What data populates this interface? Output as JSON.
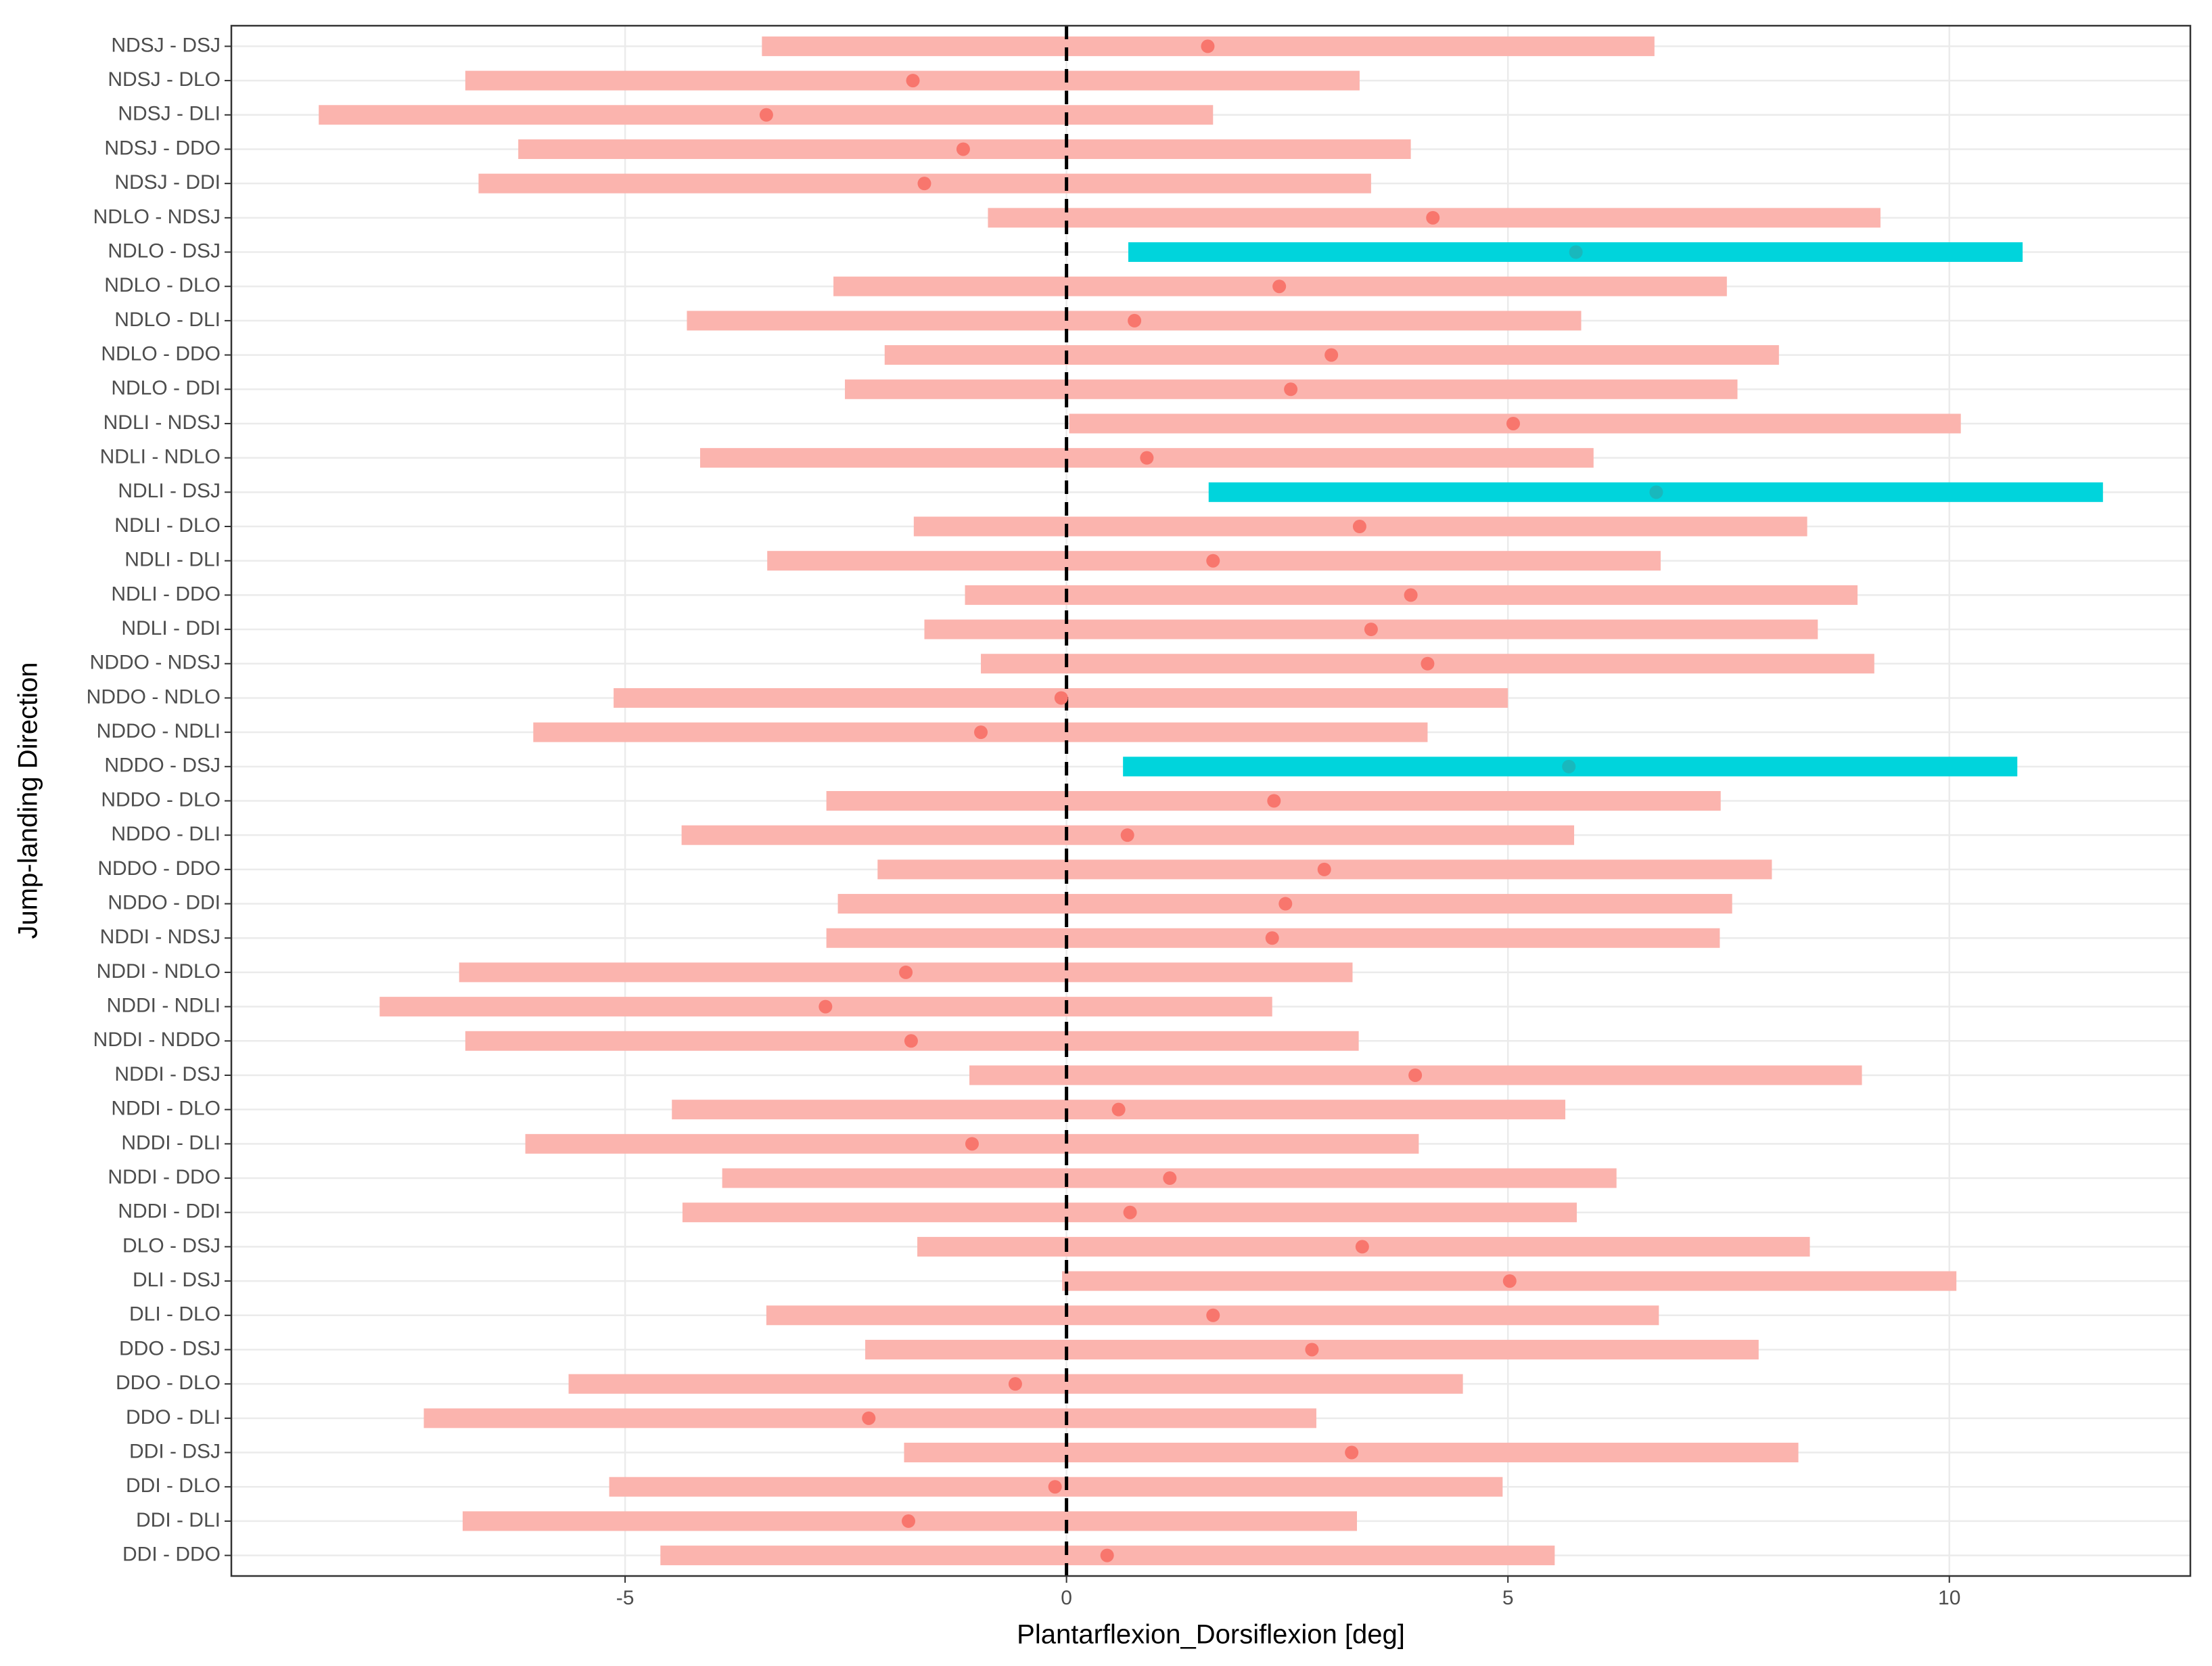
{
  "chart_data": {
    "type": "interval",
    "x_label": "Plantarflexion_Dorsiflexion [deg]",
    "y_label": "Jump-landing Direction",
    "categories": [
      "NDSJ - DSJ",
      "NDSJ - DLO",
      "NDSJ - DLI",
      "NDSJ - DDO",
      "NDSJ - DDI",
      "NDLO - NDSJ",
      "NDLO - DSJ",
      "NDLO - DLO",
      "NDLO - DLI",
      "NDLO - DDO",
      "NDLO - DDI",
      "NDLI - NDSJ",
      "NDLI - NDLO",
      "NDLI - DSJ",
      "NDLI - DLO",
      "NDLI - DLI",
      "NDLI - DDO",
      "NDLI - DDI",
      "NDDO - NDSJ",
      "NDDO - NDLO",
      "NDDO - NDLI",
      "NDDO - DSJ",
      "NDDO - DLO",
      "NDDO - DLI",
      "NDDO - DDO",
      "NDDO - DDI",
      "NDDI - NDSJ",
      "NDDI - NDLO",
      "NDDI - NDLI",
      "NDDI - NDDO",
      "NDDI - DSJ",
      "NDDI - DLO",
      "NDDI - DLI",
      "NDDI - DDO",
      "NDDI - DDI",
      "DLO - DSJ",
      "DLI - DSJ",
      "DLI - DLO",
      "DDO - DSJ",
      "DDO - DLO",
      "DDO - DLI",
      "DDI - DSJ",
      "DDI - DLO",
      "DDI - DLI",
      "DDI - DDO"
    ],
    "estimate": [
      1.6,
      -1.74,
      -3.4,
      -1.17,
      -1.61,
      4.15,
      5.77,
      2.41,
      0.77,
      3.0,
      2.54,
      5.06,
      0.91,
      6.68,
      3.32,
      1.66,
      3.9,
      3.45,
      4.09,
      -0.06,
      -0.97,
      5.69,
      2.35,
      0.69,
      2.92,
      2.48,
      2.33,
      -1.82,
      -2.73,
      -1.76,
      3.95,
      0.59,
      -1.07,
      1.17,
      0.72,
      3.35,
      5.02,
      1.66,
      2.78,
      -0.58,
      -2.24,
      3.23,
      -0.13,
      -1.79,
      0.46
    ],
    "lower": [
      -3.45,
      -6.81,
      -8.47,
      -6.21,
      -6.66,
      -0.89,
      0.7,
      -2.64,
      -4.3,
      -2.06,
      -2.51,
      0.03,
      -4.15,
      1.61,
      -1.73,
      -3.39,
      -1.15,
      -1.61,
      -0.97,
      -5.13,
      -6.04,
      0.64,
      -2.72,
      -4.36,
      -2.14,
      -2.59,
      -2.72,
      -6.88,
      -7.78,
      -6.81,
      -1.1,
      -4.47,
      -6.13,
      -3.9,
      -4.35,
      -1.69,
      -0.05,
      -3.4,
      -2.28,
      -5.64,
      -7.28,
      -1.84,
      -5.18,
      -6.84,
      -4.6
    ],
    "upper": [
      6.66,
      3.32,
      1.66,
      3.9,
      3.45,
      9.22,
      10.83,
      7.48,
      5.83,
      8.07,
      7.6,
      10.13,
      5.97,
      11.74,
      8.39,
      6.73,
      8.96,
      8.51,
      9.15,
      5.0,
      4.09,
      10.77,
      7.41,
      5.75,
      7.99,
      7.54,
      7.4,
      3.24,
      2.33,
      3.31,
      9.01,
      5.65,
      3.99,
      6.23,
      5.78,
      8.42,
      10.08,
      6.71,
      7.84,
      4.49,
      2.83,
      8.29,
      4.94,
      3.29,
      5.53
    ],
    "bar_colors": [
      "#FBB4AE",
      "#FBB4AE",
      "#FBB4AE",
      "#FBB4AE",
      "#FBB4AE",
      "#FBB4AE",
      "#00D4DC",
      "#FBB4AE",
      "#FBB4AE",
      "#FBB4AE",
      "#FBB4AE",
      "#FBB4AE",
      "#FBB4AE",
      "#00D4DC",
      "#FBB4AE",
      "#FBB4AE",
      "#FBB4AE",
      "#FBB4AE",
      "#FBB4AE",
      "#FBB4AE",
      "#FBB4AE",
      "#00D4DC",
      "#FBB4AE",
      "#FBB4AE",
      "#FBB4AE",
      "#FBB4AE",
      "#FBB4AE",
      "#FBB4AE",
      "#FBB4AE",
      "#FBB4AE",
      "#FBB4AE",
      "#FBB4AE",
      "#FBB4AE",
      "#FBB4AE",
      "#FBB4AE",
      "#FBB4AE",
      "#FBB4AE",
      "#FBB4AE",
      "#FBB4AE",
      "#FBB4AE",
      "#FBB4AE",
      "#FBB4AE",
      "#FBB4AE",
      "#FBB4AE",
      "#FBB4AE"
    ],
    "point_colors": [
      "#F8766D",
      "#F8766D",
      "#F8766D",
      "#F8766D",
      "#F8766D",
      "#F8766D",
      "#19B8BD",
      "#F8766D",
      "#F8766D",
      "#F8766D",
      "#F8766D",
      "#F8766D",
      "#F8766D",
      "#19B8BD",
      "#F8766D",
      "#F8766D",
      "#F8766D",
      "#F8766D",
      "#F8766D",
      "#F8766D",
      "#F8766D",
      "#19B8BD",
      "#F8766D",
      "#F8766D",
      "#F8766D",
      "#F8766D",
      "#F8766D",
      "#F8766D",
      "#F8766D",
      "#F8766D",
      "#F8766D",
      "#F8766D",
      "#F8766D",
      "#F8766D",
      "#F8766D",
      "#F8766D",
      "#F8766D",
      "#F8766D",
      "#F8766D",
      "#F8766D",
      "#F8766D",
      "#F8766D",
      "#F8766D",
      "#F8766D",
      "#F8766D"
    ],
    "xlim": [
      -9.46,
      12.73
    ],
    "xticks": [
      -5,
      0,
      5,
      10
    ],
    "reference_line": 0,
    "grid": true
  }
}
